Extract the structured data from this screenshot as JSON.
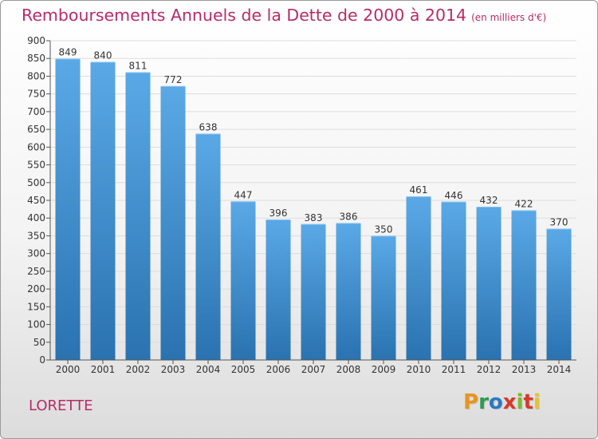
{
  "header": {
    "title": "Remboursements Annuels de la Dette de 2000 à 2014",
    "unit": "(en milliers d'€)"
  },
  "footer": {
    "commune": "LORETTE",
    "logo_text": "Proxiti",
    "logo_colors": [
      "#e8951f",
      "#2b9b4f",
      "#2979c4",
      "#d63a2a",
      "#7cb82f",
      "#d63a2a",
      "#e8c41f"
    ]
  },
  "chart_data": {
    "type": "bar",
    "title": "Remboursements Annuels de la Dette de 2000 à 2014",
    "categories": [
      "2000",
      "2001",
      "2002",
      "2003",
      "2004",
      "2005",
      "2006",
      "2007",
      "2008",
      "2009",
      "2010",
      "2011",
      "2012",
      "2013",
      "2014"
    ],
    "values": [
      849,
      840,
      811,
      772,
      638,
      447,
      396,
      383,
      386,
      350,
      461,
      446,
      432,
      422,
      370
    ],
    "ylim": [
      0,
      900
    ],
    "ytick_step": 50,
    "grid": true,
    "bar_color_top": "#5aa9e6",
    "bar_color_bottom": "#2a72b0"
  }
}
